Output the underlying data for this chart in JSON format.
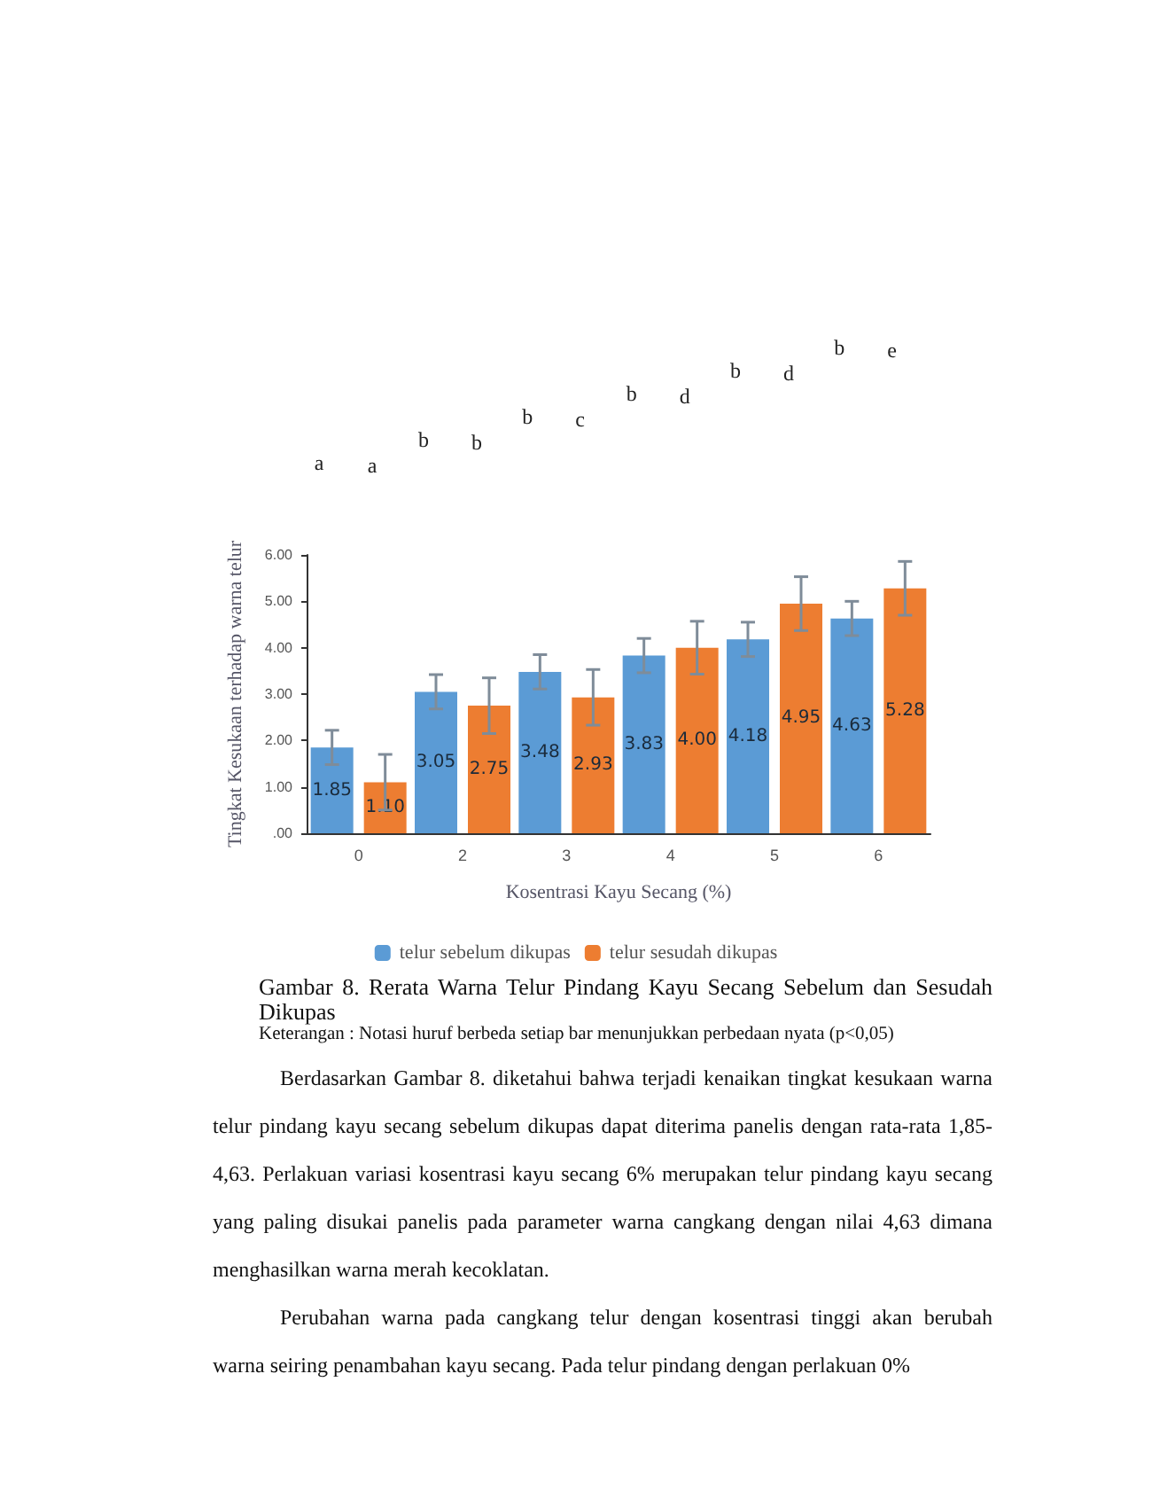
{
  "chart_data": {
    "type": "bar",
    "xlabel": "Kosentrasi Kayu Secang (%)",
    "ylabel": "Tingkat Kesukaan terhadap warna telur",
    "categories": [
      "0",
      "2",
      "3",
      "4",
      "5",
      "6"
    ],
    "series": [
      {
        "name": "telur sebelum dikupas",
        "color": "#5b9bd5",
        "values": [
          1.85,
          3.05,
          3.48,
          3.83,
          4.18,
          4.63
        ],
        "value_labels": [
          "1.85",
          "3.05",
          "3.48",
          "3.83",
          "4.18",
          "4.63"
        ],
        "errors": [
          0.37,
          0.37,
          0.37,
          0.37,
          0.37,
          0.37
        ]
      },
      {
        "name": "telur sesudah dikupas",
        "color": "#ed7d31",
        "values": [
          1.1,
          2.75,
          2.93,
          4.0,
          4.95,
          5.28
        ],
        "value_labels": [
          "1.10",
          "2.75",
          "2.93",
          "4.00",
          "4.95",
          "5.28"
        ],
        "errors": [
          0.6,
          0.6,
          0.6,
          0.57,
          0.58,
          0.58
        ]
      }
    ],
    "ylim": [
      0,
      6
    ],
    "yticks": [
      {
        "value": 0,
        "label": ".00"
      },
      {
        "value": 1,
        "label": "1.00"
      },
      {
        "value": 2,
        "label": "2.00"
      },
      {
        "value": 3,
        "label": "3.00"
      },
      {
        "value": 4,
        "label": "4.00"
      },
      {
        "value": 5,
        "label": "5.00"
      },
      {
        "value": 6,
        "label": "6.00"
      }
    ],
    "grid": false,
    "legend": "bottom",
    "annotations": [
      "a",
      "a",
      "b",
      "b",
      "b",
      "c",
      "b",
      "d",
      "b",
      "d",
      "b",
      "e",
      "Gambar 8. Rerata Warna Telur Pindang Kayu Secang Sebelum dan Sesudah Dikupas",
      "Keterangan : Notasi huruf berbeda setiap bar menunjukkan perbedaan nyata (p<0,05)",
      "Berdasarkan Gambar 8. diketahui bahwa terjadi kenaikan tingkat kesukaan warna telur pindang kayu secang sebelum dikupas dapat diterima panelis dengan rata-rata 1,85-4,63. Perlakuan variasi kosentrasi kayu secang 6% merupakan telur pindang kayu secang yang paling disukai panelis pada parameter warna cangkang dengan nilai 4,63 dimana menghasilkan warna merah kecoklatan.",
      "Perubahan warna pada cangkang telur dengan kosentrasi tinggi akan berubah warna seiring penambahan kayu secang. Pada telur pindang dengan perlakuan 0%"
    ]
  }
}
